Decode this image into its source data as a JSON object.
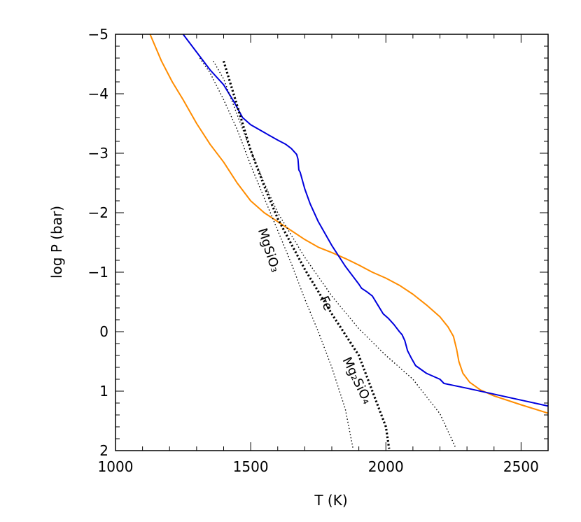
{
  "chart_data": {
    "type": "line",
    "xlabel": "T (K)",
    "ylabel": "log P (bar)",
    "xlim": [
      1000,
      2600
    ],
    "ylim": [
      2,
      -5
    ],
    "y_axis_inverted": true,
    "grid": false,
    "legend": "none",
    "x_ticks": [
      "1000",
      "1500",
      "2000",
      "2500"
    ],
    "y_ticks": [
      "−5",
      "−4",
      "−3",
      "−2",
      "−1",
      "0",
      "1",
      "2"
    ],
    "series": [
      {
        "color": "#ff8c00",
        "style": "solid",
        "points": [
          [
            1128,
            -5.0
          ],
          [
            1170,
            -4.55
          ],
          [
            1210,
            -4.2
          ],
          [
            1250,
            -3.9
          ],
          [
            1300,
            -3.5
          ],
          [
            1350,
            -3.15
          ],
          [
            1400,
            -2.85
          ],
          [
            1450,
            -2.5
          ],
          [
            1500,
            -2.2
          ],
          [
            1550,
            -2.0
          ],
          [
            1600,
            -1.85
          ],
          [
            1650,
            -1.7
          ],
          [
            1700,
            -1.55
          ],
          [
            1750,
            -1.42
          ],
          [
            1800,
            -1.33
          ],
          [
            1850,
            -1.23
          ],
          [
            1900,
            -1.12
          ],
          [
            1950,
            -1.0
          ],
          [
            2000,
            -0.9
          ],
          [
            2050,
            -0.78
          ],
          [
            2100,
            -0.63
          ],
          [
            2150,
            -0.45
          ],
          [
            2200,
            -0.25
          ],
          [
            2230,
            -0.08
          ],
          [
            2250,
            0.08
          ],
          [
            2262,
            0.3
          ],
          [
            2270,
            0.5
          ],
          [
            2285,
            0.7
          ],
          [
            2310,
            0.85
          ],
          [
            2350,
            0.98
          ],
          [
            2400,
            1.08
          ],
          [
            2500,
            1.23
          ],
          [
            2600,
            1.37
          ]
        ]
      },
      {
        "color": "#0000dd",
        "style": "solid",
        "points": [
          [
            1250,
            -5.0
          ],
          [
            1300,
            -4.7
          ],
          [
            1350,
            -4.4
          ],
          [
            1400,
            -4.15
          ],
          [
            1440,
            -3.85
          ],
          [
            1470,
            -3.6
          ],
          [
            1500,
            -3.48
          ],
          [
            1550,
            -3.35
          ],
          [
            1600,
            -3.22
          ],
          [
            1630,
            -3.15
          ],
          [
            1650,
            -3.08
          ],
          [
            1670,
            -2.98
          ],
          [
            1675,
            -2.9
          ],
          [
            1678,
            -2.72
          ],
          [
            1683,
            -2.68
          ],
          [
            1700,
            -2.4
          ],
          [
            1720,
            -2.15
          ],
          [
            1750,
            -1.85
          ],
          [
            1800,
            -1.45
          ],
          [
            1850,
            -1.1
          ],
          [
            1900,
            -0.8
          ],
          [
            1910,
            -0.73
          ],
          [
            1930,
            -0.67
          ],
          [
            1950,
            -0.6
          ],
          [
            1970,
            -0.45
          ],
          [
            1990,
            -0.3
          ],
          [
            2010,
            -0.22
          ],
          [
            2030,
            -0.12
          ],
          [
            2050,
            0.0
          ],
          [
            2060,
            0.05
          ],
          [
            2070,
            0.15
          ],
          [
            2080,
            0.32
          ],
          [
            2095,
            0.45
          ],
          [
            2110,
            0.57
          ],
          [
            2150,
            0.7
          ],
          [
            2200,
            0.8
          ],
          [
            2215,
            0.87
          ],
          [
            2300,
            0.95
          ],
          [
            2500,
            1.15
          ],
          [
            2600,
            1.25
          ]
        ]
      },
      {
        "color": "#000000",
        "style": "dotted",
        "label": "MgSiO₃",
        "points": [
          [
            1312,
            -4.6
          ],
          [
            1350,
            -4.35
          ],
          [
            1400,
            -3.9
          ],
          [
            1450,
            -3.4
          ],
          [
            1500,
            -2.8
          ],
          [
            1550,
            -2.25
          ],
          [
            1600,
            -1.7
          ],
          [
            1650,
            -1.15
          ],
          [
            1700,
            -0.55
          ],
          [
            1750,
            0.0
          ],
          [
            1800,
            0.6
          ],
          [
            1850,
            1.3
          ],
          [
            1878,
            1.95
          ]
        ]
      },
      {
        "color": "#000000",
        "style": "dotted",
        "label": "Fe",
        "points": [
          [
            1362,
            -4.55
          ],
          [
            1400,
            -4.25
          ],
          [
            1450,
            -3.65
          ],
          [
            1500,
            -3.05
          ],
          [
            1550,
            -2.5
          ],
          [
            1600,
            -2.0
          ],
          [
            1700,
            -1.25
          ],
          [
            1800,
            -0.6
          ],
          [
            1900,
            -0.05
          ],
          [
            2000,
            0.4
          ],
          [
            2100,
            0.8
          ],
          [
            2200,
            1.38
          ],
          [
            2258,
            1.95
          ]
        ]
      },
      {
        "color": "#000000",
        "style": "dotted-heavy",
        "label": "Mg₂SiO₄",
        "points": [
          [
            1400,
            -4.55
          ],
          [
            1450,
            -3.8
          ],
          [
            1500,
            -3.05
          ],
          [
            1550,
            -2.45
          ],
          [
            1600,
            -1.9
          ],
          [
            1700,
            -1.05
          ],
          [
            1800,
            -0.3
          ],
          [
            1900,
            0.4
          ],
          [
            2000,
            1.6
          ],
          [
            2012,
            1.97
          ]
        ]
      }
    ],
    "annotations": [
      {
        "text": "MgSiO₃",
        "x": 1553,
        "y": -1.35,
        "rotation": 72
      },
      {
        "text": "Fe",
        "x": 1765,
        "y": -0.45,
        "rotation": 66
      },
      {
        "text": "Mg₂SiO₄",
        "x": 1880,
        "y": 0.85,
        "rotation": 64
      }
    ]
  }
}
